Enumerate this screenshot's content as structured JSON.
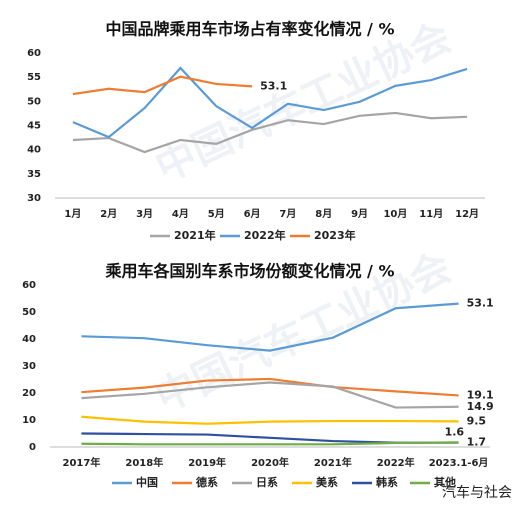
{
  "watermark": "中国汽车工业协会",
  "footer": "汽车与社会",
  "chart_data": [
    {
      "type": "line",
      "title": "中国品牌乘用车市场占有率变化情况 / %",
      "categories": [
        "1月",
        "2月",
        "3月",
        "4月",
        "5月",
        "6月",
        "7月",
        "8月",
        "9月",
        "10月",
        "11月",
        "12月"
      ],
      "ylim": [
        30,
        60
      ],
      "yticks": [
        30,
        35,
        40,
        45,
        50,
        55,
        60
      ],
      "grid": false,
      "legend": "bottom",
      "series": [
        {
          "name": "2021年",
          "color": "#a5a5a5",
          "values": [
            42.0,
            42.4,
            39.5,
            42.0,
            41.2,
            44.1,
            46.1,
            45.3,
            47.0,
            47.6,
            46.5,
            46.8
          ]
        },
        {
          "name": "2022年",
          "color": "#5b9bd5",
          "values": [
            45.7,
            42.6,
            48.6,
            56.9,
            49.0,
            44.5,
            49.5,
            48.2,
            49.9,
            53.2,
            54.4,
            56.7
          ]
        },
        {
          "name": "2023年",
          "color": "#ed7d31",
          "label_end": true,
          "values": [
            51.5,
            52.6,
            51.9,
            55.1,
            53.6,
            53.1,
            null,
            null,
            null,
            null,
            null,
            null
          ]
        }
      ]
    },
    {
      "type": "line",
      "title": "乘用车各国别车系市场份额变化情况 / %",
      "categories": [
        "2017年",
        "2018年",
        "2019年",
        "2020年",
        "2021年",
        "2022年",
        "2023.1-6月"
      ],
      "ylim": [
        0,
        60
      ],
      "yticks": [
        0,
        10,
        20,
        30,
        40,
        50,
        60
      ],
      "grid": false,
      "legend": "bottom",
      "series": [
        {
          "name": "中国",
          "color": "#5b9bd5",
          "label_end": true,
          "values": [
            41.0,
            40.3,
            37.7,
            35.7,
            40.5,
            51.4,
            53.1
          ]
        },
        {
          "name": "德系",
          "color": "#ed7d31",
          "label_end": true,
          "values": [
            20.3,
            22.0,
            24.6,
            25.2,
            22.2,
            20.6,
            19.1
          ]
        },
        {
          "name": "日系",
          "color": "#a5a5a5",
          "label_end": true,
          "values": [
            18.1,
            19.7,
            22.1,
            23.9,
            22.4,
            14.6,
            14.9
          ]
        },
        {
          "name": "美系",
          "color": "#ffc000",
          "label_end": true,
          "values": [
            11.2,
            9.4,
            8.6,
            9.4,
            9.6,
            9.6,
            9.5
          ]
        },
        {
          "name": "韩系",
          "color": "#2f4f9f",
          "label_end": true,
          "values": [
            5.0,
            4.8,
            4.6,
            3.4,
            2.2,
            1.6,
            1.6
          ]
        },
        {
          "name": "其他",
          "color": "#70ad47",
          "label_end": true,
          "values": [
            1.2,
            1.0,
            1.0,
            1.0,
            1.0,
            1.5,
            1.7
          ]
        }
      ]
    }
  ]
}
